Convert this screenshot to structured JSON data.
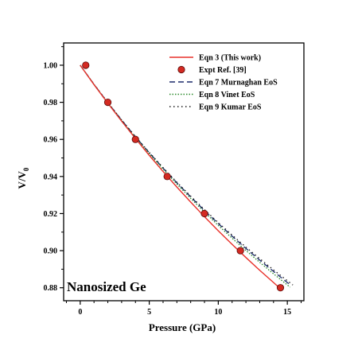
{
  "chart_data": {
    "type": "line",
    "xlabel": "Pressure (GPa)",
    "ylabel_main": "V/V",
    "ylabel_sub": "0",
    "annotation": "Nanosized Ge",
    "xlim": [
      -1.2,
      16.2
    ],
    "ylim": [
      0.873,
      1.012
    ],
    "xticks": [
      "0",
      "5",
      "10",
      "15"
    ],
    "xtick_values": [
      0,
      5,
      10,
      15
    ],
    "yticks": [
      "0.88",
      "0.90",
      "0.92",
      "0.94",
      "0.96",
      "0.98",
      "1.00"
    ],
    "ytick_values": [
      0.88,
      0.9,
      0.92,
      0.94,
      0.96,
      0.98,
      1.0
    ],
    "series": [
      {
        "name": "Eqn 3 (This work)",
        "style": "solid",
        "color": "#e8312a",
        "x": [
          0,
          1,
          2,
          3,
          4,
          5,
          6,
          7,
          8,
          9,
          10,
          11,
          12,
          13,
          14,
          14.6
        ],
        "y": [
          1.0,
          0.9895,
          0.9795,
          0.9698,
          0.9605,
          0.9514,
          0.9427,
          0.9343,
          0.9262,
          0.9183,
          0.9107,
          0.9034,
          0.8963,
          0.8894,
          0.8828,
          0.8788
        ]
      },
      {
        "name": "Expt  Ref. [39]",
        "style": "marker",
        "color": "#d42a22",
        "x": [
          0.4,
          2.0,
          4.0,
          6.3,
          9.0,
          11.6,
          14.5
        ],
        "y": [
          1.0,
          0.98,
          0.96,
          0.94,
          0.92,
          0.9,
          0.88
        ]
      },
      {
        "name": "Eqn 7 Murnaghan EoS",
        "style": "dash",
        "color": "#1b2a6b",
        "x": [
          0,
          1,
          2,
          3,
          4,
          5,
          6,
          7,
          8,
          9,
          10,
          11,
          12,
          13,
          14,
          15.2
        ],
        "y": [
          1.0,
          0.9897,
          0.9798,
          0.9704,
          0.9614,
          0.9528,
          0.9445,
          0.9366,
          0.929,
          0.9216,
          0.9146,
          0.9078,
          0.9012,
          0.8949,
          0.8888,
          0.8816
        ]
      },
      {
        "name": "Eqn 8 Vinet EoS",
        "style": "dot",
        "color": "#2a8a2a",
        "x": [
          0,
          1,
          2,
          3,
          4,
          5,
          6,
          7,
          8,
          9,
          10,
          11,
          12,
          13,
          14,
          15.2
        ],
        "y": [
          1.0,
          0.9896,
          0.9796,
          0.9701,
          0.961,
          0.9523,
          0.9439,
          0.9359,
          0.9282,
          0.9208,
          0.9136,
          0.9067,
          0.9001,
          0.8937,
          0.8875,
          0.8803
        ]
      },
      {
        "name": "Eqn 9 Kumar EoS",
        "style": "dashdot",
        "color": "#1a1a1a",
        "x": [
          0,
          1,
          2,
          3,
          4,
          5,
          6,
          7,
          8,
          9,
          10,
          11,
          12,
          13,
          14,
          15.4
        ],
        "y": [
          1.0,
          0.9897,
          0.9799,
          0.9705,
          0.9615,
          0.953,
          0.9448,
          0.9369,
          0.9294,
          0.9221,
          0.9151,
          0.9084,
          0.9019,
          0.8957,
          0.8896,
          0.8815
        ]
      }
    ]
  }
}
